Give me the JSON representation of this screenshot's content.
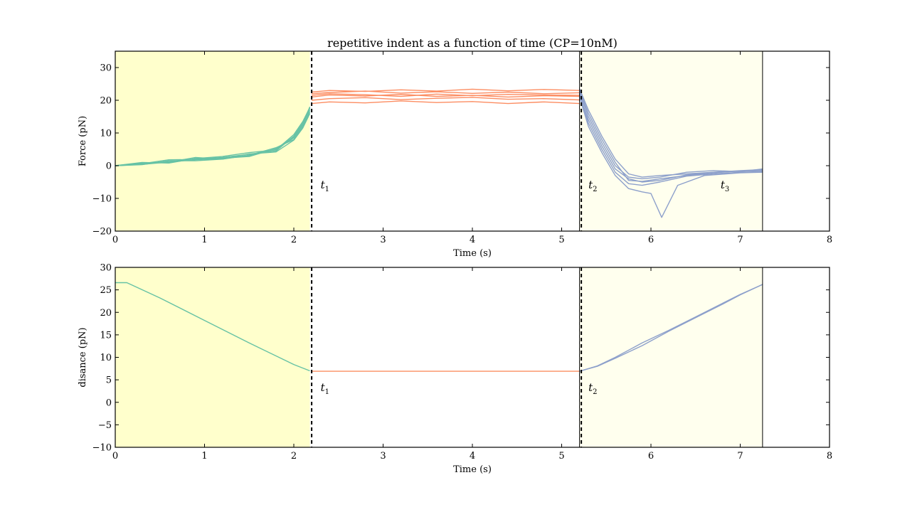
{
  "chart_data": [
    {
      "type": "line",
      "title": "repetitive indent as a function of time (CP=10nM)",
      "xlabel": "Time (s)",
      "ylabel": "Force (pN)",
      "xlim": [
        0,
        8
      ],
      "ylim": [
        -20,
        35
      ],
      "xticks": [
        0,
        1,
        2,
        3,
        4,
        5,
        6,
        7,
        8
      ],
      "yticks": [
        -20,
        -10,
        0,
        10,
        20,
        30
      ],
      "grid": false,
      "shaded_regions": [
        {
          "x": [
            0,
            2.18
          ],
          "color": "#ffffcc"
        },
        {
          "x": [
            5.2,
            7.25
          ],
          "color": "#ffffee"
        }
      ],
      "boundary_lines": [
        5.2,
        7.25
      ],
      "dashed_lines": [
        2.2,
        5.22
      ],
      "annotations": [
        {
          "label": "t",
          "subscript": "1",
          "x": 2.3,
          "y": -7
        },
        {
          "label": "t",
          "subscript": "2",
          "x": 5.3,
          "y": -7
        },
        {
          "label": "t",
          "subscript": "3",
          "x": 6.78,
          "y": -7
        }
      ],
      "phase_colors": {
        "approach": "#66c2a5",
        "hold": "#fc8d62",
        "retract": "#8da0cb"
      },
      "traces": {
        "approach": [
          {
            "x": [
              0,
              0.3,
              0.6,
              0.9,
              1.2,
              1.5,
              1.8,
              2.0,
              2.1,
              2.18
            ],
            "y": [
              0,
              0.5,
              1.2,
              1.8,
              2.2,
              3.0,
              5.0,
              8.5,
              12.5,
              17.5
            ]
          },
          {
            "x": [
              0,
              0.3,
              0.6,
              0.9,
              1.2,
              1.5,
              1.8,
              2.0,
              2.1,
              2.18
            ],
            "y": [
              0,
              0.8,
              1.0,
              2.0,
              2.5,
              3.5,
              4.5,
              9.0,
              13.0,
              18.0
            ]
          },
          {
            "x": [
              0,
              0.3,
              0.6,
              0.9,
              1.2,
              1.5,
              1.8,
              2.0,
              2.1,
              2.18
            ],
            "y": [
              0,
              0.3,
              1.5,
              1.5,
              2.0,
              3.2,
              5.5,
              8.0,
              12.0,
              16.5
            ]
          },
          {
            "x": [
              0,
              0.3,
              0.6,
              0.9,
              1.2,
              1.5,
              1.8,
              2.0,
              2.1,
              2.18
            ],
            "y": [
              0,
              1.0,
              0.8,
              2.2,
              2.8,
              4.0,
              4.8,
              9.5,
              13.5,
              17.8
            ]
          },
          {
            "x": [
              0,
              0.3,
              0.6,
              0.9,
              1.2,
              1.5,
              1.8,
              2.0,
              2.1,
              2.18
            ],
            "y": [
              0,
              0.6,
              1.8,
              1.9,
              2.3,
              2.8,
              5.2,
              8.8,
              12.8,
              17.0
            ]
          },
          {
            "x": [
              0,
              0.3,
              0.6,
              0.9,
              1.2,
              1.5,
              1.8,
              2.0,
              2.1,
              2.18
            ],
            "y": [
              0,
              0.4,
              1.1,
              2.5,
              2.0,
              3.6,
              4.2,
              7.8,
              11.5,
              16.0
            ]
          }
        ],
        "hold": [
          {
            "x": [
              2.2,
              2.4,
              2.8,
              3.2,
              3.6,
              4.0,
              4.4,
              4.8,
              5.2
            ],
            "y": [
              19.0,
              19.5,
              19.2,
              19.8,
              19.3,
              19.6,
              19.0,
              19.5,
              19.0
            ]
          },
          {
            "x": [
              2.2,
              2.4,
              2.8,
              3.2,
              3.6,
              4.0,
              4.4,
              4.8,
              5.2
            ],
            "y": [
              20.0,
              20.5,
              20.8,
              20.2,
              20.6,
              20.9,
              20.3,
              20.5,
              20.1
            ]
          },
          {
            "x": [
              2.2,
              2.4,
              2.8,
              3.2,
              3.6,
              4.0,
              4.4,
              4.8,
              5.2
            ],
            "y": [
              21.0,
              21.6,
              21.3,
              21.8,
              21.2,
              21.5,
              21.0,
              21.4,
              21.2
            ]
          },
          {
            "x": [
              2.2,
              2.4,
              2.8,
              3.2,
              3.6,
              4.0,
              4.4,
              4.8,
              5.2
            ],
            "y": [
              22.0,
              22.4,
              22.8,
              22.2,
              22.6,
              22.1,
              22.5,
              22.0,
              22.3
            ]
          },
          {
            "x": [
              2.2,
              2.4,
              2.8,
              3.2,
              3.6,
              4.0,
              4.4,
              4.8,
              5.2
            ],
            "y": [
              22.5,
              23.0,
              22.7,
              23.2,
              22.8,
              23.4,
              22.9,
              23.3,
              23.0
            ]
          },
          {
            "x": [
              2.2,
              2.4,
              2.8,
              3.2,
              3.6,
              4.0,
              4.4,
              4.8,
              5.2
            ],
            "y": [
              21.5,
              22.0,
              21.7,
              21.2,
              21.9,
              21.4,
              21.8,
              21.6,
              21.5
            ]
          }
        ],
        "retract": [
          {
            "x": [
              5.2,
              5.3,
              5.45,
              5.6,
              5.75,
              5.9,
              6.1,
              6.4,
              6.7,
              7.0,
              7.25
            ],
            "y": [
              23.5,
              17,
              9,
              2,
              -2.5,
              -3.5,
              -3.0,
              -2.5,
              -2.0,
              -1.5,
              -1.2
            ]
          },
          {
            "x": [
              5.2,
              5.3,
              5.45,
              5.6,
              5.75,
              5.9,
              6.1,
              6.4,
              6.7,
              7.0,
              7.25
            ],
            "y": [
              22.5,
              15,
              7,
              0,
              -3.5,
              -4.0,
              -3.5,
              -2.0,
              -1.5,
              -1.8,
              -1.0
            ]
          },
          {
            "x": [
              5.2,
              5.3,
              5.45,
              5.6,
              5.75,
              5.9,
              6.1,
              6.4,
              6.7,
              7.0,
              7.25
            ],
            "y": [
              23.0,
              16,
              8,
              1,
              -4.5,
              -4.8,
              -4.0,
              -3.0,
              -2.2,
              -1.6,
              -1.4
            ]
          },
          {
            "x": [
              5.2,
              5.3,
              5.45,
              5.6,
              5.75,
              5.9,
              6.1,
              6.4,
              6.7,
              7.0,
              7.25
            ],
            "y": [
              21.5,
              14,
              6,
              -1,
              -4.0,
              -5.0,
              -4.5,
              -2.8,
              -2.0,
              -1.7,
              -1.5
            ]
          },
          {
            "x": [
              5.2,
              5.3,
              5.45,
              5.6,
              5.75,
              5.9,
              6.1,
              6.4,
              6.7,
              7.0,
              7.25
            ],
            "y": [
              22.0,
              13,
              5,
              -2,
              -5.5,
              -6.0,
              -5.0,
              -3.2,
              -2.5,
              -2.0,
              -1.8
            ]
          },
          {
            "x": [
              5.2,
              5.3,
              5.45,
              5.6,
              5.75,
              5.9,
              6.0,
              6.12,
              6.3,
              6.6,
              7.0,
              7.25
            ],
            "y": [
              21.0,
              12,
              4,
              -3,
              -7.0,
              -8.0,
              -8.5,
              -15.8,
              -6.0,
              -3.0,
              -2.2,
              -2.0
            ]
          }
        ]
      }
    },
    {
      "type": "line",
      "xlabel": "Time (s)",
      "ylabel": "disance (pN)",
      "xlim": [
        0,
        8
      ],
      "ylim": [
        -10,
        30
      ],
      "xticks": [
        0,
        1,
        2,
        3,
        4,
        5,
        6,
        7,
        8
      ],
      "yticks": [
        -10,
        -5,
        0,
        5,
        10,
        15,
        20,
        25,
        30
      ],
      "grid": false,
      "shaded_regions": [
        {
          "x": [
            0,
            2.18
          ],
          "color": "#ffffcc"
        },
        {
          "x": [
            5.2,
            7.25
          ],
          "color": "#ffffee"
        }
      ],
      "boundary_lines": [
        5.2,
        7.25
      ],
      "dashed_lines": [
        2.2,
        5.22
      ],
      "annotations": [
        {
          "label": "t",
          "subscript": "1",
          "x": 2.3,
          "y": 2.5
        },
        {
          "label": "t",
          "subscript": "2",
          "x": 5.3,
          "y": 2.5
        }
      ],
      "phase_colors": {
        "approach": "#66c2a5",
        "hold": "#fc8d62",
        "retract": "#8da0cb"
      },
      "traces": {
        "approach": [
          {
            "x": [
              0,
              0.13,
              0.5,
              1.0,
              1.5,
              2.0,
              2.18
            ],
            "y": [
              26.6,
              26.6,
              23.2,
              18.2,
              13.2,
              8.4,
              7.0
            ]
          }
        ],
        "hold": [
          {
            "x": [
              2.2,
              5.2
            ],
            "y": [
              6.9,
              6.9
            ]
          }
        ],
        "retract": [
          {
            "x": [
              5.2,
              5.4,
              5.6,
              5.9,
              6.2,
              6.5,
              6.8,
              7.0,
              7.25
            ],
            "y": [
              6.9,
              8.0,
              9.8,
              12.6,
              15.8,
              18.8,
              21.8,
              23.9,
              26.2
            ]
          },
          {
            "x": [
              5.2,
              5.4,
              5.6,
              5.9,
              6.2,
              6.5,
              6.8,
              7.0,
              7.25
            ],
            "y": [
              6.9,
              8.1,
              10.0,
              13.2,
              16.0,
              19.0,
              22.0,
              24.0,
              26.2
            ]
          }
        ]
      }
    }
  ]
}
